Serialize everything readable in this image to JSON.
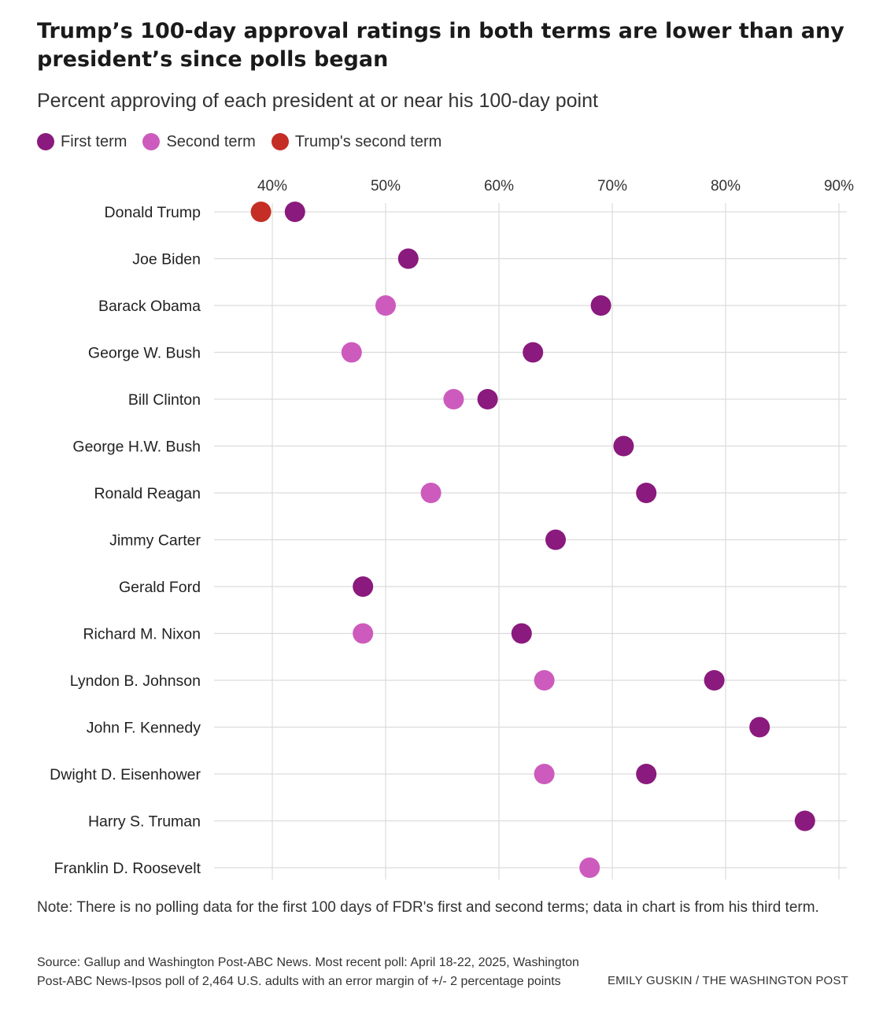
{
  "title": "Trump’s 100-day approval ratings in both terms are lower than any president’s since polls began",
  "subtitle": "Percent approving of each president at or near his 100-day point",
  "legend": [
    {
      "label": "First term",
      "color": "#8a1a7d"
    },
    {
      "label": "Second term",
      "color": "#cc5bbd"
    },
    {
      "label": "Trump's second term",
      "color": "#c42e25"
    }
  ],
  "chart_data": {
    "type": "scatter",
    "orientation": "horizontal dot plot",
    "categories": [
      "Donald Trump",
      "Joe Biden",
      "Barack Obama",
      "George W. Bush",
      "Bill Clinton",
      "George H.W. Bush",
      "Ronald Reagan",
      "Jimmy Carter",
      "Gerald Ford",
      "Richard M. Nixon",
      "Lyndon B. Johnson",
      "John F. Kennedy",
      "Dwight D. Eisenhower",
      "Harry S. Truman",
      "Franklin D. Roosevelt"
    ],
    "series": [
      {
        "name": "First term",
        "color": "#8a1a7d",
        "values": [
          42,
          52,
          69,
          63,
          59,
          71,
          73,
          65,
          48,
          62,
          79,
          83,
          73,
          87,
          null
        ]
      },
      {
        "name": "Second term",
        "color": "#cc5bbd",
        "values": [
          null,
          null,
          50,
          47,
          56,
          null,
          54,
          null,
          null,
          48,
          64,
          null,
          64,
          null,
          68
        ]
      },
      {
        "name": "Trump's second term",
        "color": "#c42e25",
        "values": [
          39,
          null,
          null,
          null,
          null,
          null,
          null,
          null,
          null,
          null,
          null,
          null,
          null,
          null,
          null
        ]
      }
    ],
    "x_ticks": [
      "40%",
      "50%",
      "60%",
      "70%",
      "80%",
      "90%"
    ],
    "x_tick_values": [
      40,
      50,
      60,
      70,
      80,
      90
    ],
    "xlim": [
      36,
      90.2
    ],
    "axis_position": "top",
    "grid": true
  },
  "note": "Note: There is no polling data for the first 100 days of FDR's first and second terms; data in chart is from his third term.",
  "source": "Source: Gallup and Washington Post-ABC News. Most recent poll: April 18-22, 2025, Washington Post-ABC News-Ipsos poll of 2,464 U.S. adults with an error margin of +/- 2 percentage points",
  "credit": "EMILY GUSKIN / THE WASHINGTON POST"
}
